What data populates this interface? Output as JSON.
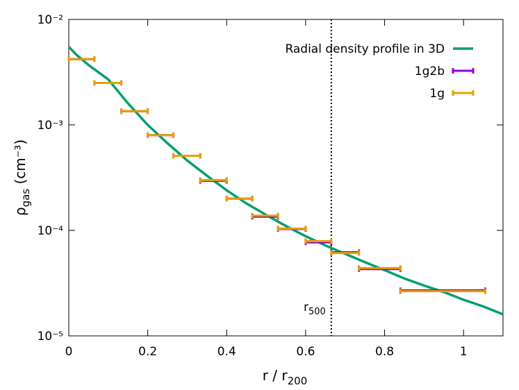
{
  "chart_data": {
    "type": "line",
    "x_label": {
      "main": "r / r",
      "subscript": "200"
    },
    "y_label": {
      "symbol": "ρ",
      "subscript": "gas",
      "unit": " (cm⁻³)"
    },
    "log_y": true,
    "xlim": [
      0,
      1.1
    ],
    "xticks": [
      0,
      0.2,
      0.4,
      0.6,
      0.8,
      1
    ],
    "ylim": [
      1e-05,
      0.01
    ],
    "yticks": [
      {
        "value": 1e-05,
        "label": "10⁻⁵"
      },
      {
        "value": 0.0001,
        "label": "10⁻⁴"
      },
      {
        "value": 0.001,
        "label": "10⁻³"
      },
      {
        "value": 0.01,
        "label": "10⁻²"
      }
    ],
    "legend": "top-right",
    "vline": {
      "x": 0.665,
      "label": "r",
      "subscript": "500"
    },
    "series": [
      {
        "name": "Radial density profile in 3D",
        "color": "#009e73",
        "style": "line",
        "x": [
          0,
          0.02,
          0.05,
          0.1,
          0.15,
          0.2,
          0.25,
          0.3,
          0.35,
          0.4,
          0.45,
          0.5,
          0.55,
          0.6,
          0.65,
          0.7,
          0.75,
          0.8,
          0.85,
          0.9,
          0.95,
          1,
          1.05,
          1.1
        ],
        "values": [
          0.0055,
          0.0046,
          0.0037,
          0.0027,
          0.0016,
          0.001,
          0.00067,
          0.00046,
          0.00033,
          0.00024,
          0.00018,
          0.00014,
          0.00011,
          8.8e-05,
          7.2e-05,
          6e-05,
          5e-05,
          4.2e-05,
          3.5e-05,
          3e-05,
          2.6e-05,
          2.2e-05,
          1.9e-05,
          1.6e-05
        ]
      },
      {
        "name": "1g2b",
        "color": "#9400d3",
        "style": "xerror",
        "x": [
          0.0325,
          0.099,
          0.1665,
          0.2325,
          0.299,
          0.3665,
          0.4325,
          0.4975,
          0.565,
          0.6325,
          0.7,
          0.7875,
          0.9475
        ],
        "xerr": [
          0.0325,
          0.034,
          0.0335,
          0.0325,
          0.034,
          0.0335,
          0.0325,
          0.0325,
          0.035,
          0.0325,
          0.035,
          0.0525,
          0.1075
        ],
        "values": [
          0.0042,
          0.0025,
          0.00135,
          0.0008,
          0.00051,
          0.000295,
          0.0002,
          0.000135,
          0.000103,
          7.7e-05,
          6.2e-05,
          4.3e-05,
          2.7e-05
        ]
      },
      {
        "name": "1g",
        "color": "#e69f00",
        "style": "xerror",
        "x": [
          0.0325,
          0.099,
          0.1665,
          0.2325,
          0.299,
          0.3665,
          0.4325,
          0.4975,
          0.565,
          0.6325,
          0.7,
          0.7875,
          0.9475
        ],
        "xerr": [
          0.0325,
          0.034,
          0.0335,
          0.0325,
          0.034,
          0.0335,
          0.0325,
          0.0325,
          0.035,
          0.0325,
          0.035,
          0.0525,
          0.1075
        ],
        "values": [
          0.0042,
          0.0025,
          0.00135,
          0.0008,
          0.00051,
          0.0003,
          0.0002,
          0.000138,
          0.000104,
          7.9e-05,
          6.1e-05,
          4.4e-05,
          2.65e-05
        ]
      }
    ]
  }
}
